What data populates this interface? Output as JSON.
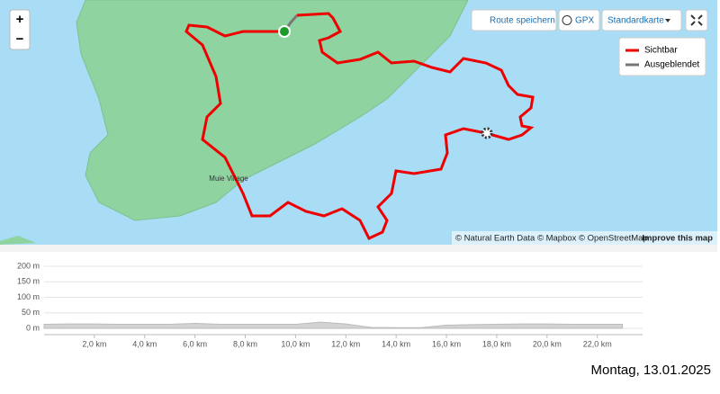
{
  "map": {
    "zoom_in": "+",
    "zoom_out": "−",
    "save_route": "Route speichern",
    "gpx": "GPX",
    "map_style": "Standardkarte",
    "legend": [
      "Sichtbar",
      "Ausgeblendet"
    ],
    "place_label": "Muie Village",
    "attribution": "© Natural Earth Data © Mapbox © OpenStreetMap",
    "improve": "Improve this map"
  },
  "profile": {
    "x": [
      0,
      1,
      2,
      3,
      4,
      5,
      6,
      7,
      8,
      9,
      10,
      11,
      12,
      13,
      14,
      15,
      16,
      17,
      18,
      19,
      20,
      21,
      22,
      23
    ],
    "values": [
      13,
      14,
      14,
      13,
      13,
      13,
      16,
      13,
      13,
      13,
      13,
      20,
      14,
      3,
      2,
      2,
      10,
      12,
      13,
      14,
      14,
      13,
      13,
      13
    ],
    "xlim": [
      0,
      23.8
    ],
    "ylim": [
      0,
      200
    ],
    "yticks": [
      {
        "value": 0,
        "label": "0 m"
      },
      {
        "value": 50,
        "label": "50 m"
      },
      {
        "value": 100,
        "label": "100 m"
      },
      {
        "value": 150,
        "label": "150 m"
      },
      {
        "value": 200,
        "label": "200 m"
      }
    ],
    "xticks": [
      {
        "value": 2,
        "label": "2,0 km"
      },
      {
        "value": 4,
        "label": "4,0 km"
      },
      {
        "value": 6,
        "label": "6,0 km"
      },
      {
        "value": 8,
        "label": "8,0 km"
      },
      {
        "value": 10,
        "label": "10,0 km"
      },
      {
        "value": 12,
        "label": "12,0 km"
      },
      {
        "value": 14,
        "label": "14,0 km"
      },
      {
        "value": 16,
        "label": "16,0 km"
      },
      {
        "value": 18,
        "label": "18,0 km"
      },
      {
        "value": 20,
        "label": "20,0 km"
      },
      {
        "value": 22,
        "label": "22,0 km"
      }
    ]
  },
  "footer": {
    "date": "Montag, 13.01.2025"
  }
}
